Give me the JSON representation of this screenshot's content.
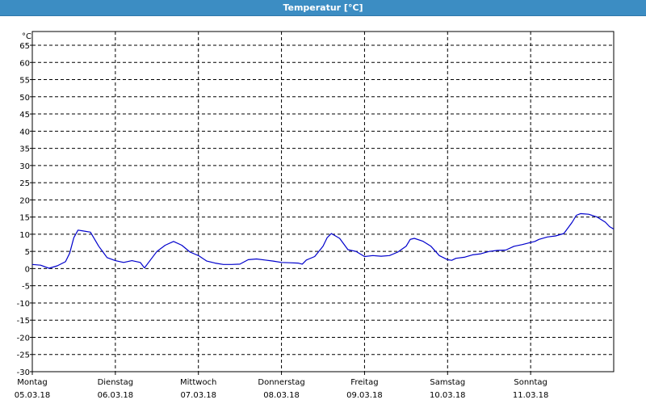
{
  "window": {
    "title": "Temperatur [°C]"
  },
  "chart_data": {
    "type": "line",
    "title": "Temperatur [°C]",
    "ylabel": "°C",
    "ylim": [
      -30,
      69
    ],
    "yticks": [
      65,
      60,
      55,
      50,
      45,
      40,
      35,
      30,
      25,
      20,
      15,
      10,
      5,
      0,
      -5,
      -10,
      -15,
      -20,
      -25,
      -30
    ],
    "grid": true,
    "xlim": [
      0,
      7
    ],
    "x_ticks": [
      {
        "x": 0,
        "day": "Montag",
        "date": "05.03.18"
      },
      {
        "x": 1,
        "day": "Dienstag",
        "date": "06.03.18"
      },
      {
        "x": 2,
        "day": "Mittwoch",
        "date": "07.03.18"
      },
      {
        "x": 3,
        "day": "Donnerstag",
        "date": "08.03.18"
      },
      {
        "x": 4,
        "day": "Freitag",
        "date": "09.03.18"
      },
      {
        "x": 5,
        "day": "Samstag",
        "date": "10.03.18"
      },
      {
        "x": 6,
        "day": "Sonntag",
        "date": "11.03.18"
      }
    ],
    "series": [
      {
        "color": "#0000cc",
        "points": [
          [
            0.0,
            1.2
          ],
          [
            0.1,
            1.0
          ],
          [
            0.2,
            0.1
          ],
          [
            0.3,
            0.8
          ],
          [
            0.4,
            2.0
          ],
          [
            0.45,
            4.5
          ],
          [
            0.5,
            9.0
          ],
          [
            0.55,
            11.2
          ],
          [
            0.6,
            11.0
          ],
          [
            0.7,
            10.6
          ],
          [
            0.8,
            6.5
          ],
          [
            0.9,
            3.2
          ],
          [
            1.0,
            2.3
          ],
          [
            1.1,
            1.8
          ],
          [
            1.2,
            2.3
          ],
          [
            1.3,
            1.8
          ],
          [
            1.35,
            0.2
          ],
          [
            1.4,
            1.8
          ],
          [
            1.5,
            5.0
          ],
          [
            1.6,
            6.8
          ],
          [
            1.7,
            7.9
          ],
          [
            1.8,
            6.8
          ],
          [
            1.9,
            4.8
          ],
          [
            2.0,
            3.8
          ],
          [
            2.1,
            2.2
          ],
          [
            2.2,
            1.6
          ],
          [
            2.3,
            1.2
          ],
          [
            2.4,
            1.2
          ],
          [
            2.5,
            1.3
          ],
          [
            2.6,
            2.6
          ],
          [
            2.7,
            2.8
          ],
          [
            2.8,
            2.5
          ],
          [
            2.9,
            2.2
          ],
          [
            3.0,
            1.8
          ],
          [
            3.1,
            1.7
          ],
          [
            3.2,
            1.6
          ],
          [
            3.25,
            1.3
          ],
          [
            3.3,
            2.5
          ],
          [
            3.4,
            3.5
          ],
          [
            3.5,
            6.5
          ],
          [
            3.55,
            9.0
          ],
          [
            3.6,
            10.2
          ],
          [
            3.7,
            8.8
          ],
          [
            3.8,
            5.5
          ],
          [
            3.9,
            5.0
          ],
          [
            4.0,
            3.5
          ],
          [
            4.1,
            3.8
          ],
          [
            4.2,
            3.6
          ],
          [
            4.3,
            3.8
          ],
          [
            4.4,
            4.8
          ],
          [
            4.5,
            6.5
          ],
          [
            4.55,
            8.5
          ],
          [
            4.6,
            8.8
          ],
          [
            4.7,
            8.0
          ],
          [
            4.8,
            6.5
          ],
          [
            4.9,
            3.8
          ],
          [
            5.0,
            2.6
          ],
          [
            5.05,
            2.4
          ],
          [
            5.1,
            3.0
          ],
          [
            5.2,
            3.3
          ],
          [
            5.3,
            4.0
          ],
          [
            5.4,
            4.3
          ],
          [
            5.5,
            5.0
          ],
          [
            5.6,
            5.3
          ],
          [
            5.7,
            5.4
          ],
          [
            5.8,
            6.5
          ],
          [
            5.9,
            7.0
          ],
          [
            6.0,
            7.6
          ],
          [
            6.05,
            7.9
          ],
          [
            6.1,
            8.5
          ],
          [
            6.2,
            9.2
          ],
          [
            6.3,
            9.5
          ],
          [
            6.4,
            10.2
          ],
          [
            6.5,
            13.5
          ],
          [
            6.55,
            15.5
          ],
          [
            6.6,
            16.0
          ],
          [
            6.7,
            15.8
          ],
          [
            6.8,
            15.0
          ],
          [
            6.9,
            13.5
          ],
          [
            6.95,
            12.2
          ],
          [
            7.0,
            11.5
          ]
        ]
      }
    ]
  }
}
